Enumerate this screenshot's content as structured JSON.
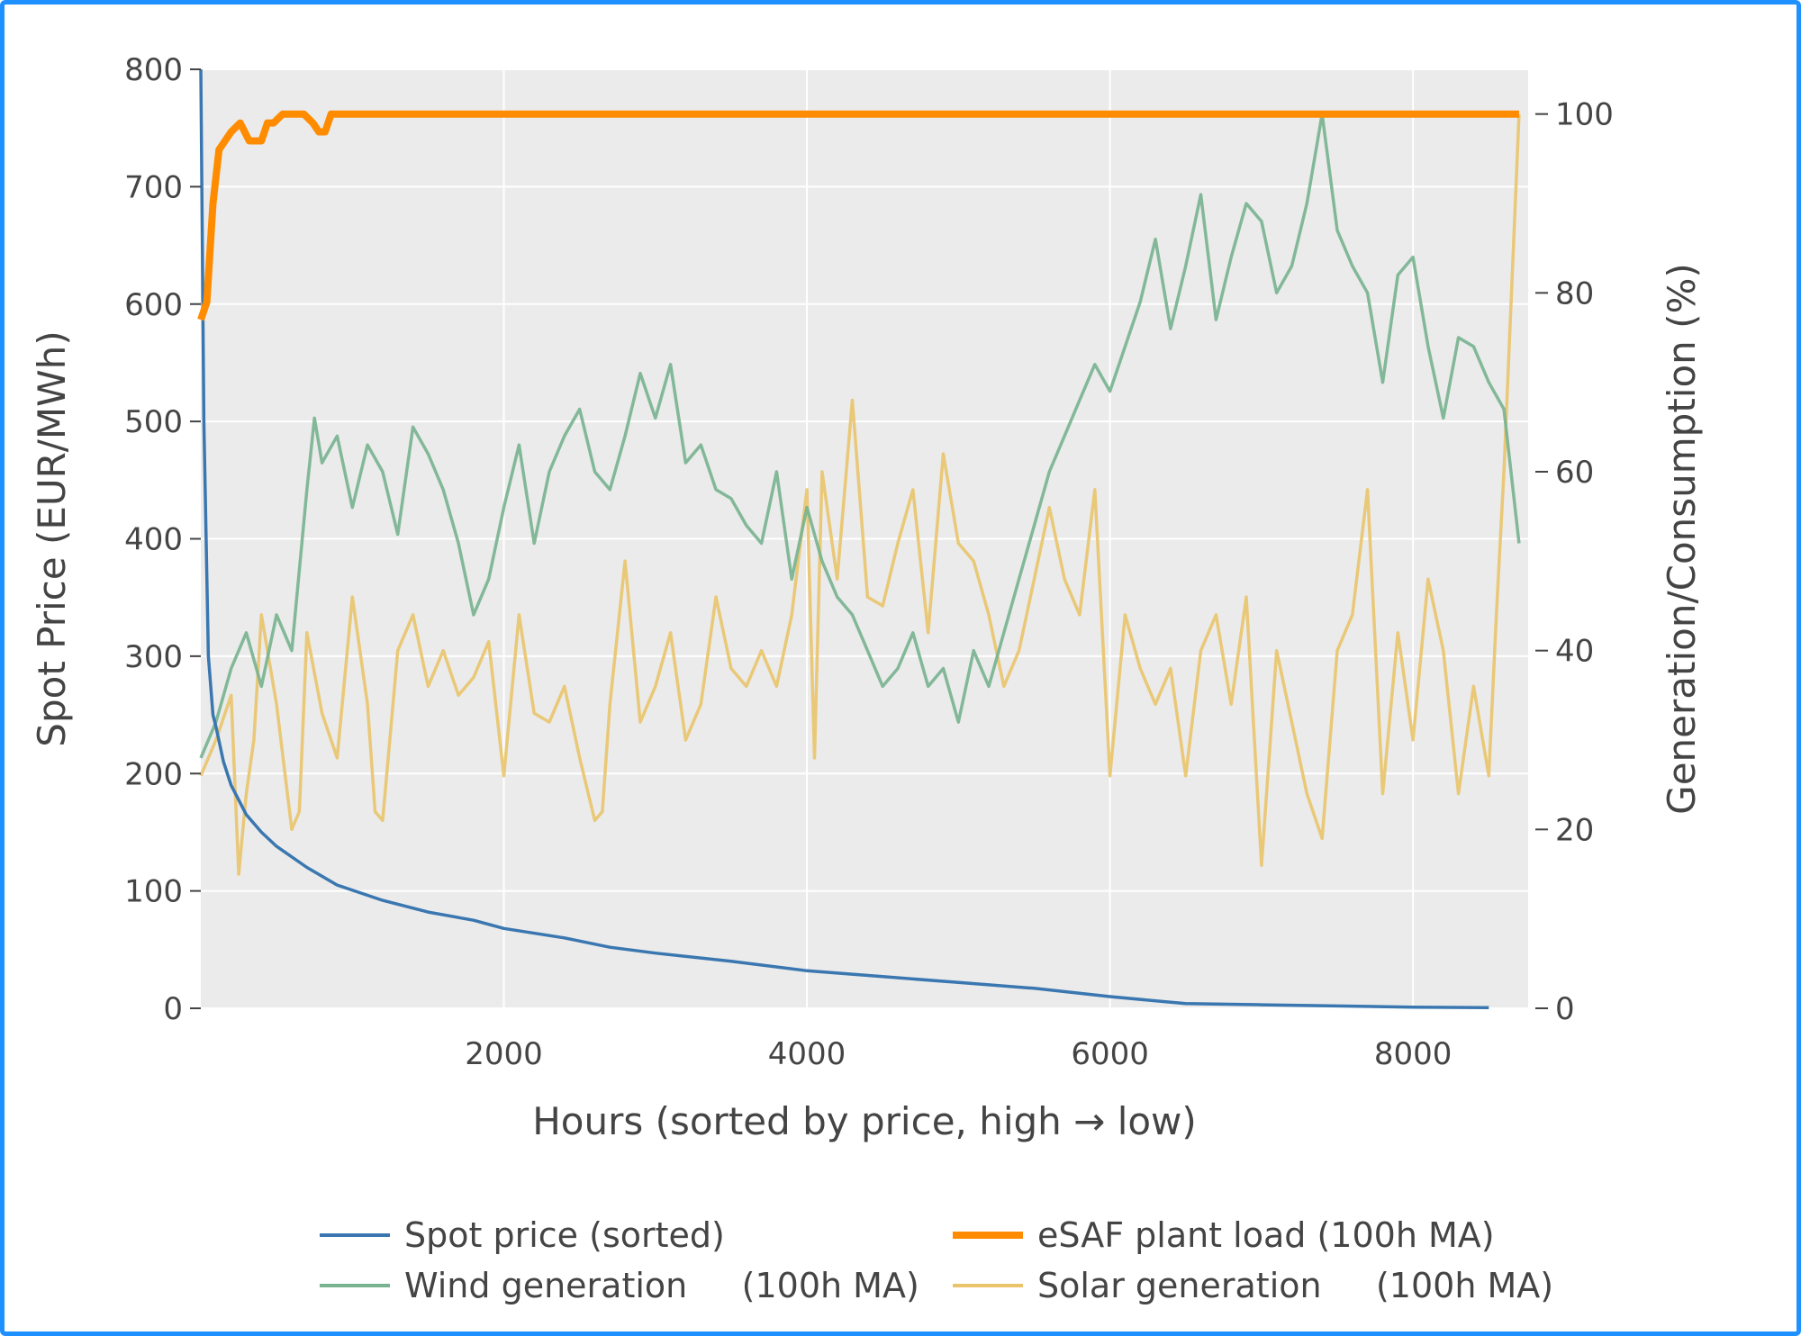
{
  "chart_data": {
    "type": "line",
    "xlabel": "Hours (sorted by price, high → low)",
    "ylabel": "Spot Price (EUR/MWh)",
    "y2label": "Generation/Consumption (%)",
    "xlim": [
      0,
      8760
    ],
    "ylim": [
      0,
      800
    ],
    "y2lim": [
      0,
      105
    ],
    "x_ticks": [
      2000,
      4000,
      6000,
      8000
    ],
    "y_ticks": [
      0,
      100,
      200,
      300,
      400,
      500,
      600,
      700,
      800
    ],
    "y2_ticks": [
      0,
      20,
      40,
      60,
      80,
      100
    ],
    "grid": true,
    "legend_position": "bottom",
    "colors": {
      "spot": "#3a77b0",
      "esaf": "#ff8c00",
      "wind": "#77b38f",
      "solar": "#e9c46a",
      "plot_bg": "#ebebeb",
      "grid": "#ffffff",
      "frame": "#1e90ff"
    },
    "series": [
      {
        "name": "Spot price (sorted)",
        "axis": "y",
        "x": [
          0,
          20,
          50,
          80,
          100,
          150,
          200,
          300,
          400,
          500,
          700,
          900,
          1200,
          1500,
          1800,
          2000,
          2400,
          2700,
          3000,
          3500,
          4000,
          4500,
          5000,
          5500,
          6000,
          6500,
          7000,
          7500,
          8000,
          8500
        ],
        "y": [
          800,
          500,
          300,
          250,
          240,
          210,
          190,
          165,
          150,
          138,
          120,
          105,
          92,
          82,
          75,
          68,
          60,
          52,
          47,
          40,
          32,
          27,
          22,
          17,
          10,
          4,
          3,
          2,
          1,
          0.5
        ]
      },
      {
        "name": "eSAF plant load (100h MA)",
        "axis": "y2",
        "x": [
          0,
          40,
          80,
          120,
          160,
          200,
          260,
          320,
          360,
          400,
          440,
          480,
          540,
          600,
          680,
          740,
          780,
          820,
          860,
          900,
          1000,
          2000,
          4000,
          6000,
          8000,
          8700
        ],
        "y": [
          77,
          79,
          90,
          96,
          97,
          98,
          99,
          97,
          97,
          97,
          99,
          99,
          100,
          100,
          100,
          99,
          98,
          98,
          100,
          100,
          100,
          100,
          100,
          100,
          100,
          100
        ]
      },
      {
        "name": "Wind generation     (100h MA)",
        "axis": "y2",
        "x": [
          0,
          100,
          200,
          300,
          400,
          500,
          600,
          700,
          750,
          800,
          900,
          1000,
          1100,
          1200,
          1300,
          1400,
          1500,
          1600,
          1700,
          1800,
          1900,
          2000,
          2100,
          2200,
          2300,
          2400,
          2500,
          2600,
          2700,
          2800,
          2900,
          3000,
          3100,
          3200,
          3300,
          3400,
          3500,
          3600,
          3700,
          3800,
          3900,
          4000,
          4100,
          4200,
          4300,
          4400,
          4500,
          4600,
          4700,
          4800,
          4900,
          5000,
          5100,
          5200,
          5300,
          5400,
          5500,
          5600,
          5700,
          5800,
          5900,
          6000,
          6100,
          6200,
          6300,
          6400,
          6500,
          6600,
          6700,
          6800,
          6900,
          7000,
          7100,
          7200,
          7300,
          7400,
          7500,
          7600,
          7700,
          7800,
          7900,
          8000,
          8100,
          8200,
          8300,
          8400,
          8500,
          8600,
          8700
        ],
        "y": [
          28,
          32,
          38,
          42,
          36,
          44,
          40,
          58,
          66,
          61,
          64,
          56,
          63,
          60,
          53,
          65,
          62,
          58,
          52,
          44,
          48,
          56,
          63,
          52,
          60,
          64,
          67,
          60,
          58,
          64,
          71,
          66,
          72,
          61,
          63,
          58,
          57,
          54,
          52,
          60,
          48,
          56,
          50,
          46,
          44,
          40,
          36,
          38,
          42,
          36,
          38,
          32,
          40,
          36,
          42,
          48,
          54,
          60,
          64,
          68,
          72,
          69,
          74,
          79,
          86,
          76,
          83,
          91,
          77,
          84,
          90,
          88,
          80,
          83,
          90,
          100,
          87,
          83,
          80,
          70,
          82,
          84,
          74,
          66,
          75,
          74,
          70,
          67,
          52
        ]
      },
      {
        "name": "Solar generation     (100h MA)",
        "axis": "y2",
        "x": [
          0,
          100,
          200,
          250,
          300,
          350,
          400,
          500,
          600,
          650,
          700,
          800,
          900,
          1000,
          1100,
          1150,
          1200,
          1300,
          1400,
          1500,
          1600,
          1700,
          1800,
          1900,
          2000,
          2100,
          2200,
          2300,
          2400,
          2500,
          2600,
          2650,
          2700,
          2800,
          2900,
          3000,
          3100,
          3200,
          3300,
          3400,
          3500,
          3600,
          3700,
          3800,
          3900,
          4000,
          4050,
          4100,
          4200,
          4300,
          4400,
          4500,
          4600,
          4700,
          4800,
          4900,
          5000,
          5100,
          5200,
          5300,
          5400,
          5500,
          5600,
          5700,
          5800,
          5900,
          6000,
          6100,
          6200,
          6300,
          6400,
          6500,
          6600,
          6700,
          6800,
          6900,
          7000,
          7100,
          7200,
          7300,
          7400,
          7500,
          7600,
          7700,
          7800,
          7900,
          8000,
          8100,
          8200,
          8300,
          8400,
          8500,
          8550,
          8600,
          8650,
          8700
        ],
        "y": [
          26,
          30,
          35,
          15,
          24,
          30,
          44,
          34,
          20,
          22,
          42,
          33,
          28,
          46,
          34,
          22,
          21,
          40,
          44,
          36,
          40,
          35,
          37,
          41,
          26,
          44,
          33,
          32,
          36,
          28,
          21,
          22,
          34,
          50,
          32,
          36,
          42,
          30,
          34,
          46,
          38,
          36,
          40,
          36,
          44,
          58,
          28,
          60,
          48,
          68,
          46,
          45,
          52,
          58,
          42,
          62,
          52,
          50,
          44,
          36,
          40,
          48,
          56,
          48,
          44,
          58,
          26,
          44,
          38,
          34,
          38,
          26,
          40,
          44,
          34,
          46,
          16,
          40,
          32,
          24,
          19,
          40,
          44,
          58,
          24,
          42,
          30,
          48,
          40,
          24,
          36,
          26,
          44,
          60,
          80,
          100
        ]
      }
    ]
  }
}
